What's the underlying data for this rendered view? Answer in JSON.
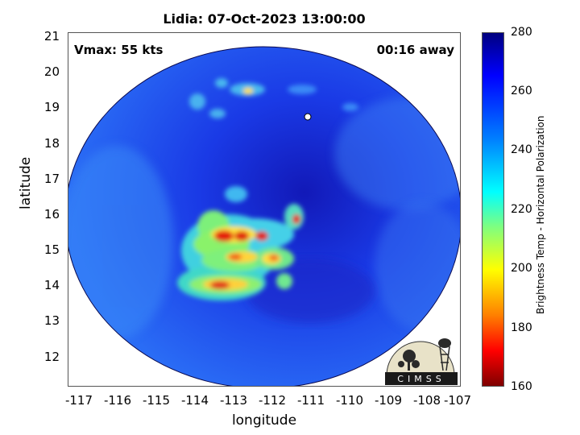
{
  "title": "Lidia: 07-Oct-2023 13:00:00",
  "annotations": {
    "vmax": "Vmax: 55 kts",
    "away": "00:16 away"
  },
  "axes": {
    "xlabel": "longitude",
    "ylabel": "latitude",
    "xlim": [
      -117.2,
      -107
    ],
    "ylim": [
      11.2,
      21.2
    ],
    "xticks": [
      "-117",
      "-116",
      "-115",
      "-114",
      "-113",
      "-112",
      "-111",
      "-110",
      "-109",
      "-108",
      "-107"
    ],
    "yticks": [
      "21",
      "20",
      "19",
      "18",
      "17",
      "16",
      "15",
      "14",
      "13",
      "12"
    ]
  },
  "colorbar": {
    "label": "Brightness Temp - Horizontal Polarization",
    "range": [
      160,
      280
    ],
    "ticks": [
      "280",
      "260",
      "240",
      "220",
      "200",
      "180",
      "160"
    ],
    "colormap": "jet"
  },
  "storm_center": {
    "lon": -111.0,
    "lat": 18.8
  },
  "logo_text": "CIMSS",
  "colors": {
    "background_ocean": "#1e3ff0",
    "eye_region": "#1a22c8",
    "warm_core": "#dd1100"
  }
}
